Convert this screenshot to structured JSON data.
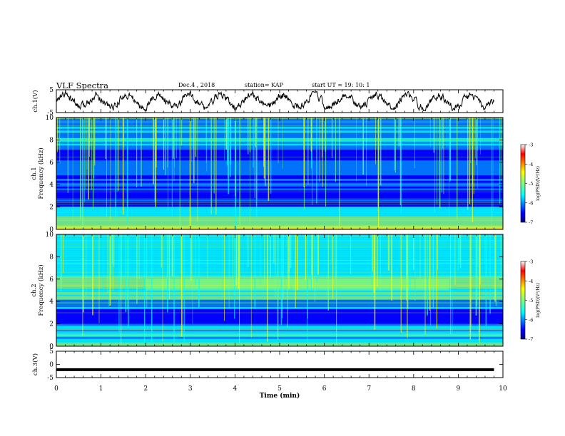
{
  "header": {
    "title": "VLF Spectra",
    "date": "Dec.4  , 2018",
    "station": "station= KAP",
    "start": "start  UT =   19: 10: 1"
  },
  "colors": {
    "colormap": [
      "#00007f",
      "#0000ff",
      "#007fff",
      "#00ffff",
      "#7fff7f",
      "#ffff00",
      "#ff7f00",
      "#ff0000",
      "#7f0000"
    ],
    "trace": "#000000",
    "axes": "#000000"
  },
  "chart_data": [
    {
      "type": "line",
      "ylabel": "ch.1(V)",
      "ylim": [
        -5,
        5
      ],
      "yticks": [
        "5",
        "-5"
      ],
      "note": "waveform trace"
    },
    {
      "type": "heatmap",
      "ylabel_top": "ch.1",
      "ylabel": "Frequency (kHz)",
      "ylim": [
        0,
        10
      ],
      "yticks": [
        "0",
        "2",
        "4",
        "6",
        "8",
        "10"
      ],
      "colorbar": {
        "label": "log(PSD)(V²/Hz)",
        "ticks": [
          "-3",
          "-4",
          "-5",
          "-6",
          "-7"
        ],
        "range": [
          -7,
          -3
        ]
      }
    },
    {
      "type": "heatmap",
      "ylabel_top": "ch.2",
      "ylabel": "Frequency (kHz)",
      "ylim": [
        0,
        10
      ],
      "yticks": [
        "0",
        "2",
        "4",
        "6",
        "8",
        "10"
      ],
      "colorbar": {
        "label": "log(PSD)(V²/Hz)",
        "ticks": [
          "-3",
          "-4",
          "-5",
          "-6",
          "-7"
        ],
        "range": [
          -7,
          -3
        ]
      }
    },
    {
      "type": "line",
      "ylabel": "ch.3(V)",
      "ylim": [
        -5,
        5
      ],
      "yticks": [
        "5",
        "0",
        "-5"
      ],
      "x": [
        0,
        9.8
      ],
      "y": [
        -2,
        -2
      ]
    }
  ],
  "xaxis": {
    "label": "Time  (min)",
    "ticks": [
      "0",
      "1",
      "2",
      "3",
      "4",
      "5",
      "6",
      "7",
      "8",
      "9",
      "10"
    ],
    "range": [
      0,
      10
    ]
  }
}
